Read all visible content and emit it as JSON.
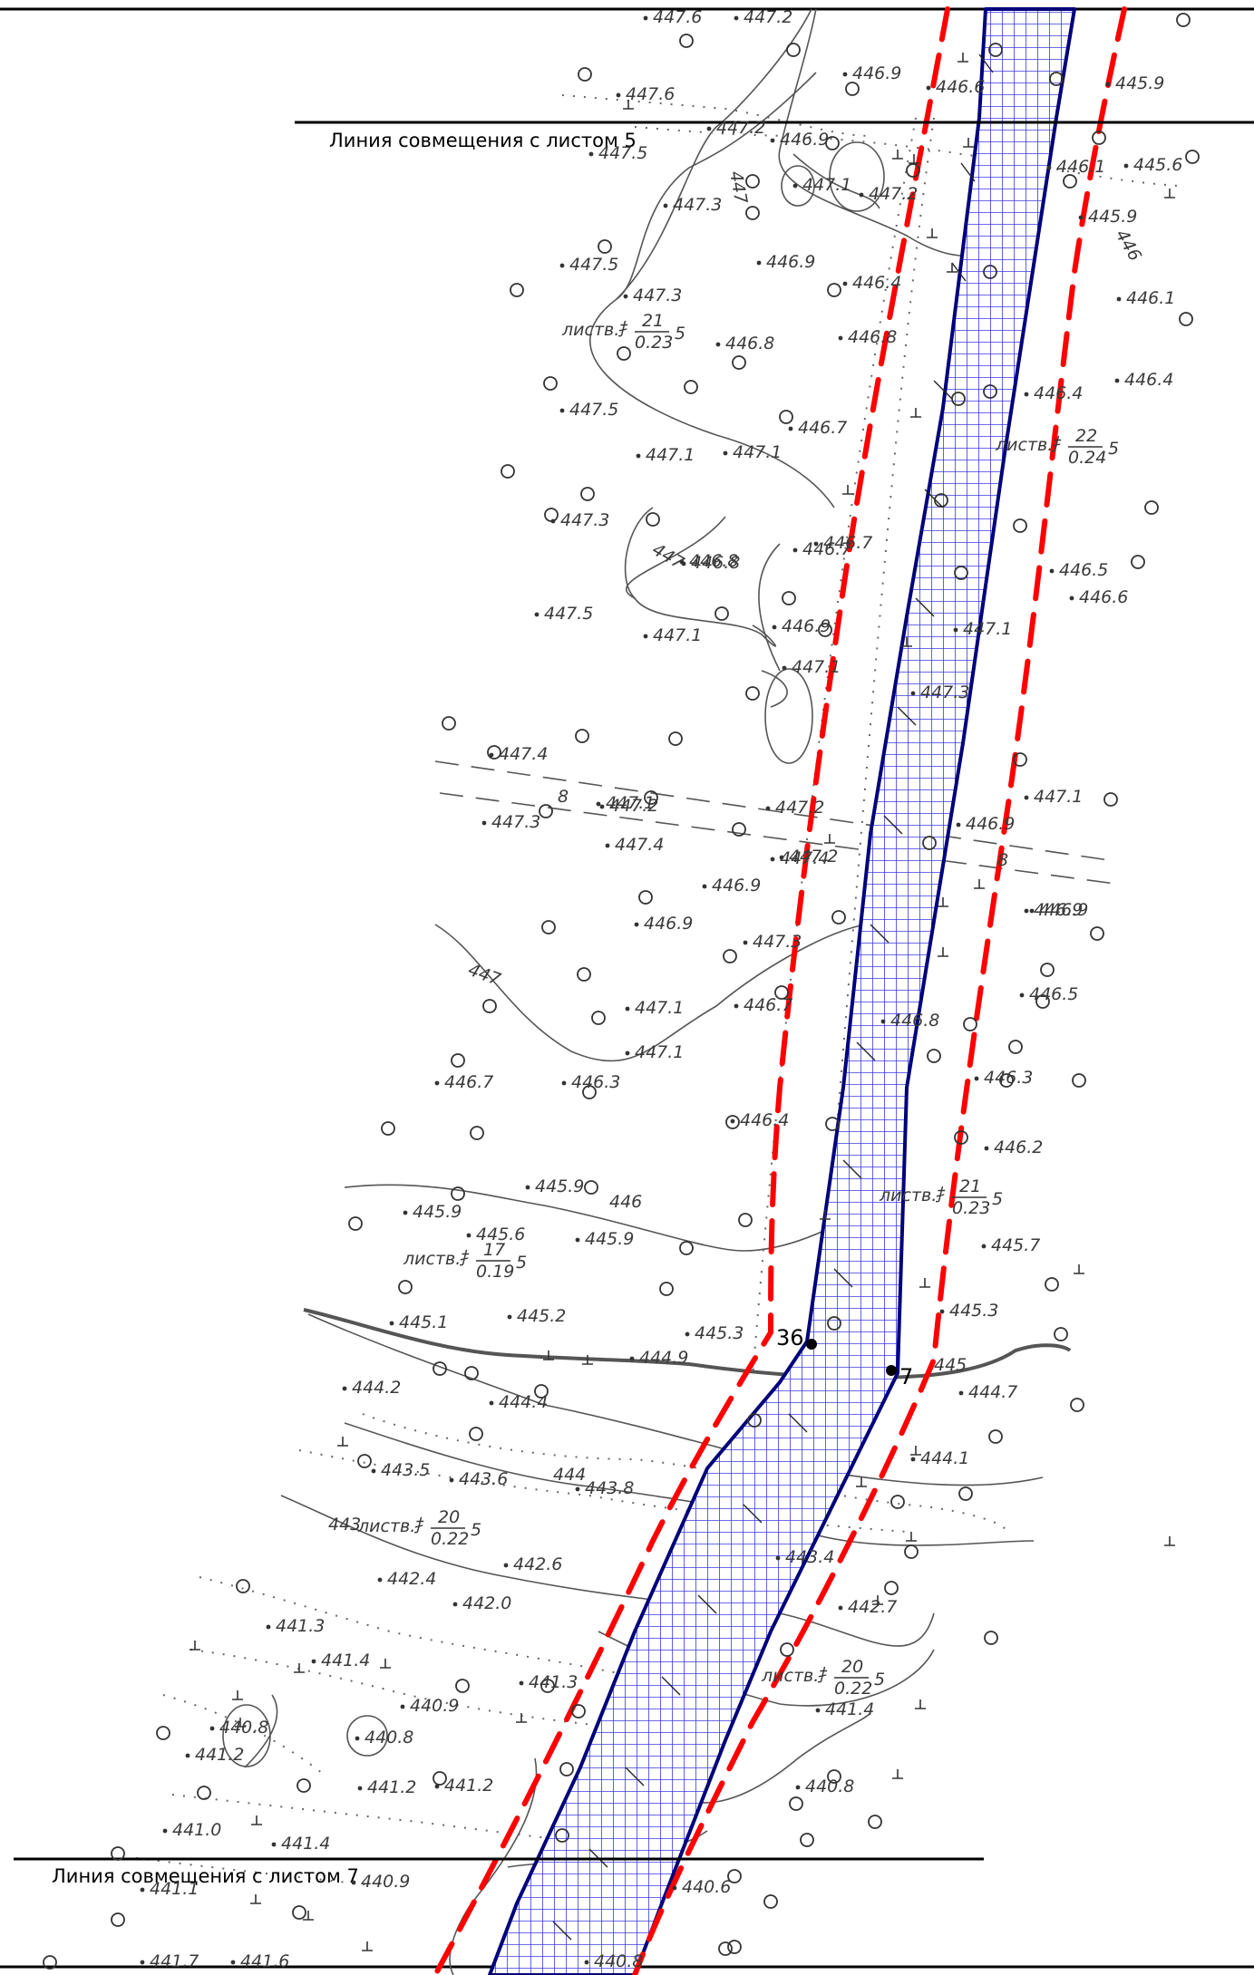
{
  "match_lines": {
    "top_label": "Линия совмещения с листом 5",
    "bottom_label": "Линия совмещения с листом 7"
  },
  "points": {
    "p36": "36",
    "p7": "7"
  },
  "colors": {
    "corridor_fill": "#5a5af0",
    "corridor_edge": "#00007a",
    "boundary": "#ff0000",
    "terrain": "#555555"
  },
  "icons": [
    "circle-marker-icon",
    "grass-tick-icon",
    "spot-dot-icon"
  ],
  "elevations": [
    "447.6",
    "447.2",
    "446.9",
    "446.6",
    "445.9",
    "447.6",
    "447.2",
    "447.5",
    "446.9",
    "446.1",
    "445.6",
    "447.1",
    "447.2",
    "447.3",
    "445.9",
    "447.5",
    "446.9",
    "446.4",
    "446.1",
    "447.3",
    "446.8",
    "446.8",
    "447.5",
    "446.7",
    "446.4",
    "447.1",
    "447.1",
    "446.4",
    "447.3",
    "446.8",
    "446.7",
    "446.5",
    "447.5",
    "447.1",
    "446.9",
    "446.6",
    "447.1",
    "447.3",
    "447.1",
    "446.8",
    "446.7",
    "447.4",
    "447.1",
    "446.9",
    "447.2",
    "447.2",
    "447.3",
    "447.4",
    "446.9",
    "447.2",
    "447.1",
    "447.4",
    "446.9",
    "446.9",
    "447.3",
    "446.9",
    "446.7",
    "446.5",
    "447.1",
    "447.1",
    "446.8",
    "446.7",
    "446.3",
    "446.4",
    "446.3",
    "446.2",
    "445.9",
    "445.9",
    "445.6",
    "445.9",
    "445.7",
    "445.1",
    "445.2",
    "445.3",
    "445.3",
    "444.9",
    "444.2",
    "444.4",
    "444.7",
    "443.5",
    "443.6",
    "443.8",
    "444.1",
    "442.4",
    "442.6",
    "443.4",
    "442.0",
    "442.7",
    "441.3",
    "441.4",
    "441.3",
    "441.4",
    "440.9",
    "440.8",
    "440.8",
    "441.2",
    "441.2",
    "441.2",
    "440.8",
    "441.0",
    "441.4",
    "441.1",
    "440.9",
    "440.6",
    "441.7",
    "441.6",
    "440.8"
  ],
  "contour_labels": [
    "447",
    "447",
    "447",
    "446",
    "444",
    "443",
    "445",
    "446"
  ],
  "vegetation": [
    {
      "kind": "листв.",
      "top": "21",
      "bottom": "0.23",
      "extra": "5"
    },
    {
      "kind": "листв.",
      "top": "22",
      "bottom": "0.24",
      "extra": "5"
    },
    {
      "kind": "листв.",
      "top": "21",
      "bottom": "0.23",
      "extra": "5"
    },
    {
      "kind": "листв.",
      "top": "17",
      "bottom": "0.19",
      "extra": "5"
    },
    {
      "kind": "листв.",
      "top": "20",
      "bottom": "0.22",
      "extra": "5"
    },
    {
      "kind": "листв.",
      "top": "20",
      "bottom": "0.22",
      "extra": "5"
    }
  ],
  "road_marks": [
    "8",
    "8"
  ]
}
